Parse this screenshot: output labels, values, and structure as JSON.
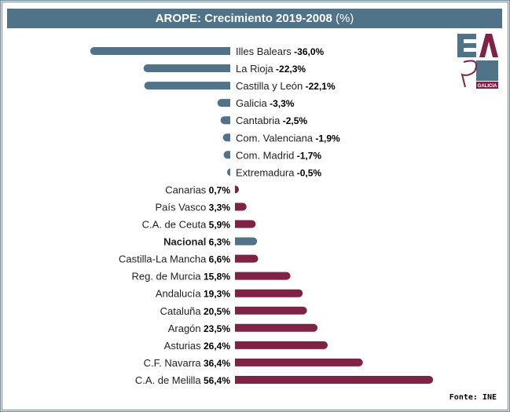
{
  "chart_data": {
    "type": "bar",
    "orientation": "horizontal",
    "title": "AROPE: Crecimiento 2019-2008",
    "title_unit": "(%)",
    "categories": [
      "Illes Balears",
      "La Rioja",
      "Castilla y León",
      "Galicia",
      "Cantabria",
      "Com. Valenciana",
      "Com. Madrid",
      "Extremadura",
      "Canarias",
      "País Vasco",
      "C.A. de Ceuta",
      "Nacional",
      "Castilla-La Mancha",
      "Reg. de Murcia",
      "Andalucía",
      "Cataluña",
      "Aragón",
      "Asturias",
      "C.F. Navarra",
      "C.A. de Melilla"
    ],
    "values": [
      -36.0,
      -22.3,
      -22.1,
      -3.3,
      -2.5,
      -1.9,
      -1.7,
      -0.5,
      0.7,
      3.3,
      5.9,
      6.3,
      6.6,
      15.8,
      19.3,
      20.5,
      23.5,
      26.4,
      36.4,
      56.4
    ],
    "value_labels": [
      "-36,0%",
      "-22,3%",
      "-22,1%",
      "-3,3%",
      "-2,5%",
      "-1,9%",
      "-1,7%",
      "-0,5%",
      "0,7%",
      "3,3%",
      "5,9%",
      "6,3%",
      "6,6%",
      "15,8%",
      "19,3%",
      "20,5%",
      "23,5%",
      "26,4%",
      "36,4%",
      "56,4%"
    ],
    "highlight": "Nacional",
    "colors": {
      "negative": "#51738a",
      "positive": "#7f2246",
      "national": "#51738a"
    }
  },
  "logo": {
    "text": "EAPN",
    "sub": "GALICIA"
  },
  "source": "Fonte: INE"
}
